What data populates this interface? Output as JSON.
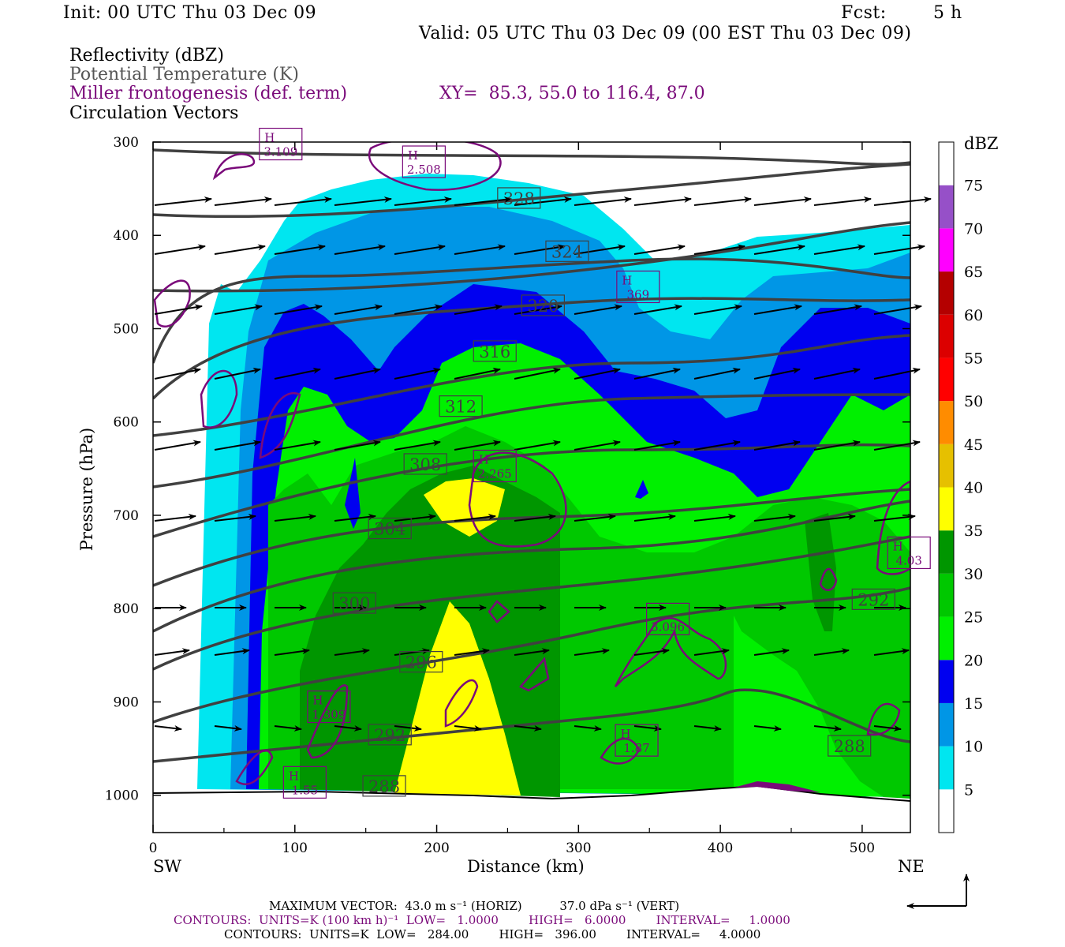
{
  "header": {
    "init": "Init: 00 UTC Thu 03 Dec 09",
    "fcst_label": "Fcst:",
    "fcst_value": "5 h",
    "valid": "Valid: 05 UTC Thu 03 Dec 09 (00 EST Thu 03 Dec 09)"
  },
  "legend": {
    "reflectivity": "Reflectivity (dBZ)",
    "theta": "Potential Temperature (K)",
    "miller": "Miller frontogenesis (def. term)",
    "xy": "XY=  85.3, 55.0 to 116.4, 87.0",
    "vectors": "Circulation Vectors"
  },
  "colors": {
    "miller": "#7a0a7a",
    "theta": "#404040",
    "refl_5": "#00e6f0",
    "refl_10": "#0096e6",
    "refl_15": "#0000f0",
    "refl_20": "#00f000",
    "refl_25": "#00c800",
    "refl_30": "#009600",
    "refl_35": "#ffff00"
  },
  "chart_data": {
    "type": "contour-cross-section",
    "xlabel": "Distance (km)",
    "ylabel": "Pressure (hPa)",
    "x_ticks": [
      "0",
      "100",
      "200",
      "300",
      "400",
      "500"
    ],
    "y_ticks": [
      "300",
      "400",
      "500",
      "600",
      "700",
      "800",
      "900",
      "1000"
    ],
    "xlim": [
      0,
      534
    ],
    "ylim": [
      300,
      1040
    ],
    "sw_label": "SW",
    "ne_label": "NE",
    "colorbar": {
      "unit": "dBZ",
      "levels": [
        "5",
        "10",
        "15",
        "20",
        "25",
        "30",
        "35",
        "40",
        "45",
        "50",
        "55",
        "60",
        "65",
        "70",
        "75"
      ],
      "colors": [
        "#ffffff",
        "#00e6f0",
        "#0096e6",
        "#0000f0",
        "#00f000",
        "#00c800",
        "#009600",
        "#ffff00",
        "#e6c000",
        "#ff8c00",
        "#ff0000",
        "#dc0000",
        "#b40000",
        "#ff00ff",
        "#9650c8",
        "#ffffff"
      ]
    },
    "theta_labels": [
      {
        "text": "328",
        "x": 258,
        "p": 360
      },
      {
        "text": "324",
        "x": 292,
        "p": 417
      },
      {
        "text": "320",
        "x": 275,
        "p": 475
      },
      {
        "text": "316",
        "x": 241,
        "p": 524
      },
      {
        "text": "312",
        "x": 217,
        "p": 583
      },
      {
        "text": "308",
        "x": 192,
        "p": 645
      },
      {
        "text": "304",
        "x": 167,
        "p": 714
      },
      {
        "text": "300",
        "x": 142,
        "p": 794
      },
      {
        "text": "296",
        "x": 189,
        "p": 857
      },
      {
        "text": "292",
        "x": 167,
        "p": 935
      },
      {
        "text": "288",
        "x": 163,
        "p": 990
      },
      {
        "text": "292",
        "x": 508,
        "p": 790
      },
      {
        "text": "288",
        "x": 491,
        "p": 947
      }
    ],
    "miller_labels": [
      {
        "h": "H",
        "v": "2.508",
        "x": 191,
        "p": 322
      },
      {
        "h": "H",
        "v": "3.109",
        "x": 90,
        "p": 303
      },
      {
        "h": "H",
        "v": "369",
        "x": 342,
        "p": 456
      },
      {
        "h": "H",
        "v": "2.265",
        "x": 241,
        "p": 648
      },
      {
        "h": "H",
        "v": "4.03",
        "x": 533,
        "p": 741
      },
      {
        "h": "",
        "v": "3.096",
        "x": 363,
        "p": 812
      },
      {
        "h": "H",
        "v": "1.309",
        "x": 124,
        "p": 906
      },
      {
        "h": "H",
        "v": "1.87",
        "x": 341,
        "p": 942
      },
      {
        "h": "H",
        "v": "1.55",
        "x": 107,
        "p": 987
      }
    ],
    "footer": {
      "max_vector": "MAXIMUM VECTOR:  43.0 m s⁻¹ (HORIZ)          37.0 dPa s⁻¹ (VERT)",
      "contours1": "CONTOURS:  UNITS=K (100 km h)⁻¹  LOW=   1.0000        HIGH=   6.0000        INTERVAL=     1.0000",
      "contours2": "CONTOURS:  UNITS=K  LOW=   284.00        HIGH=   396.00        INTERVAL=     4.0000"
    }
  }
}
